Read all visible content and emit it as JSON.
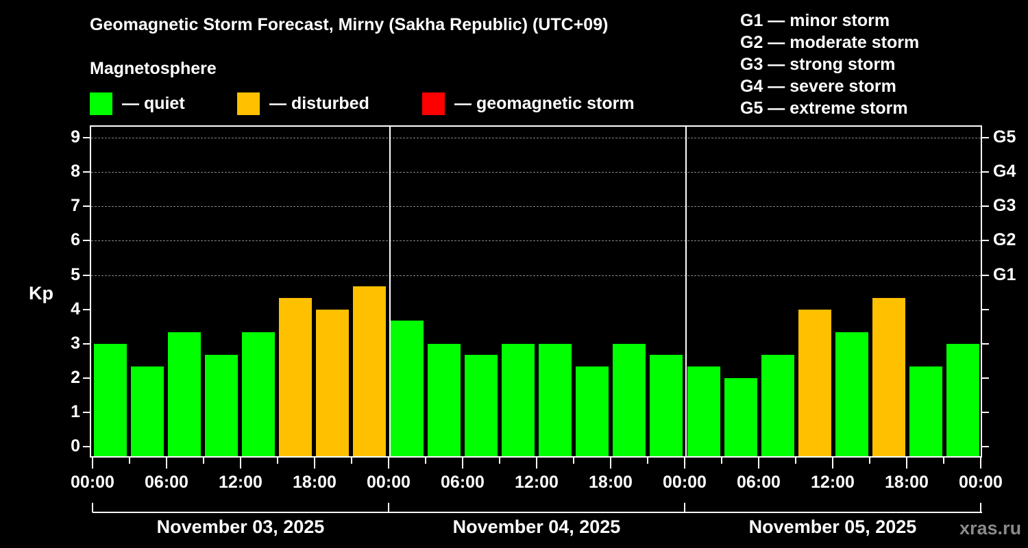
{
  "title": "Geomagnetic Storm Forecast, Mirny (Sakha Republic) (UTC+09)",
  "subtitle": "Magnetosphere",
  "legend": [
    {
      "label": "— quiet",
      "color": "#00ff00"
    },
    {
      "label": "— disturbed",
      "color": "#ffc000"
    },
    {
      "label": "— geomagnetic storm",
      "color": "#ff0000"
    }
  ],
  "g_legend": [
    "G1 — minor storm",
    "G2 — moderate storm",
    "G3 — strong storm",
    "G4 — severe storm",
    "G5 — extreme storm"
  ],
  "watermark": "xras.ru",
  "chart_data": {
    "type": "bar",
    "title": "Geomagnetic Storm Forecast, Mirny (Sakha Republic) (UTC+09)",
    "xlabel": "",
    "ylabel": "Kp",
    "ylim": [
      0,
      9
    ],
    "grid": "horizontal dashed at Kp 5-9",
    "yticks": [
      "0",
      "1",
      "2",
      "3",
      "4",
      "5",
      "6",
      "7",
      "8",
      "9"
    ],
    "right_axis_labels": [
      {
        "kp": 5,
        "label": "G1"
      },
      {
        "kp": 6,
        "label": "G2"
      },
      {
        "kp": 7,
        "label": "G3"
      },
      {
        "kp": 8,
        "label": "G4"
      },
      {
        "kp": 9,
        "label": "G5"
      }
    ],
    "xticks": [
      "00:00",
      "06:00",
      "12:00",
      "18:00",
      "00:00",
      "06:00",
      "12:00",
      "18:00",
      "00:00",
      "06:00",
      "12:00",
      "18:00",
      "00:00"
    ],
    "days": [
      "November 03, 2025",
      "November 04, 2025",
      "November 05, 2025"
    ],
    "categories": [
      "Nov 03 00-03",
      "Nov 03 03-06",
      "Nov 03 06-09",
      "Nov 03 09-12",
      "Nov 03 12-15",
      "Nov 03 15-18",
      "Nov 03 18-21",
      "Nov 03 21-24",
      "Nov 04 00-03",
      "Nov 04 03-06",
      "Nov 04 06-09",
      "Nov 04 09-12",
      "Nov 04 12-15",
      "Nov 04 15-18",
      "Nov 04 18-21",
      "Nov 04 21-24",
      "Nov 05 00-03",
      "Nov 05 03-06",
      "Nov 05 06-09",
      "Nov 05 09-12",
      "Nov 05 12-15",
      "Nov 05 15-18",
      "Nov 05 18-21",
      "Nov 05 21-24"
    ],
    "values": [
      3.0,
      2.33,
      3.33,
      2.67,
      3.33,
      4.33,
      4.0,
      4.67,
      3.67,
      3.0,
      2.67,
      3.0,
      3.0,
      2.33,
      3.0,
      2.67,
      2.33,
      2.0,
      2.67,
      4.0,
      3.33,
      4.33,
      2.33,
      3.0
    ],
    "status": [
      "quiet",
      "quiet",
      "quiet",
      "quiet",
      "quiet",
      "disturbed",
      "disturbed",
      "disturbed",
      "quiet",
      "quiet",
      "quiet",
      "quiet",
      "quiet",
      "quiet",
      "quiet",
      "quiet",
      "quiet",
      "quiet",
      "quiet",
      "disturbed",
      "quiet",
      "disturbed",
      "quiet",
      "quiet"
    ],
    "colors": {
      "quiet": "#00ff00",
      "disturbed": "#ffc000",
      "storm": "#ff0000"
    }
  }
}
